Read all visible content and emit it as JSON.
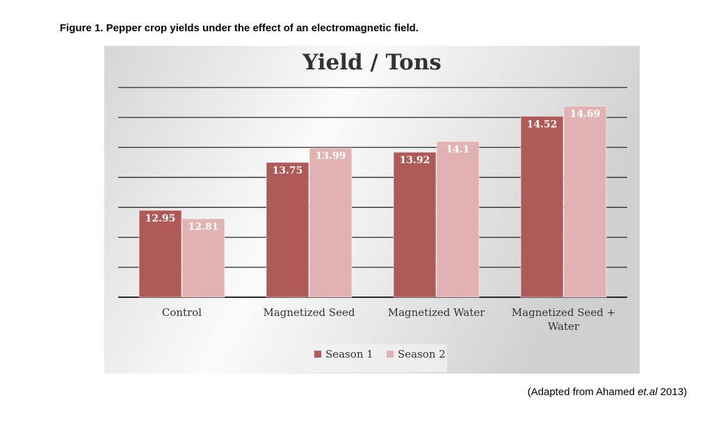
{
  "figure": {
    "caption": "Figure 1. Pepper crop yields under the effect of an electromagnetic field.",
    "source_prefix": "(Adapted from Ahamed ",
    "source_italic": "et.al",
    "source_suffix": " 2013)"
  },
  "colors": {
    "season1": "#b05a58",
    "season2": "#e2b2b2",
    "grid": "#262626",
    "label_bg": "#c07a78"
  },
  "chart_data": {
    "type": "bar",
    "title": "Yield / Tons",
    "xlabel": "",
    "ylabel": "",
    "categories": [
      "Control",
      "Magnetized Seed",
      "Magnetized Water",
      "Magnetized Seed + Water"
    ],
    "series": [
      {
        "name": "Season 1",
        "values": [
          12.95,
          13.75,
          13.92,
          14.52
        ]
      },
      {
        "name": "Season 2",
        "values": [
          12.81,
          13.99,
          14.1,
          14.69
        ]
      }
    ],
    "ylim": [
      11.5,
      15.0
    ],
    "grid": true,
    "legend_position": "bottom"
  }
}
